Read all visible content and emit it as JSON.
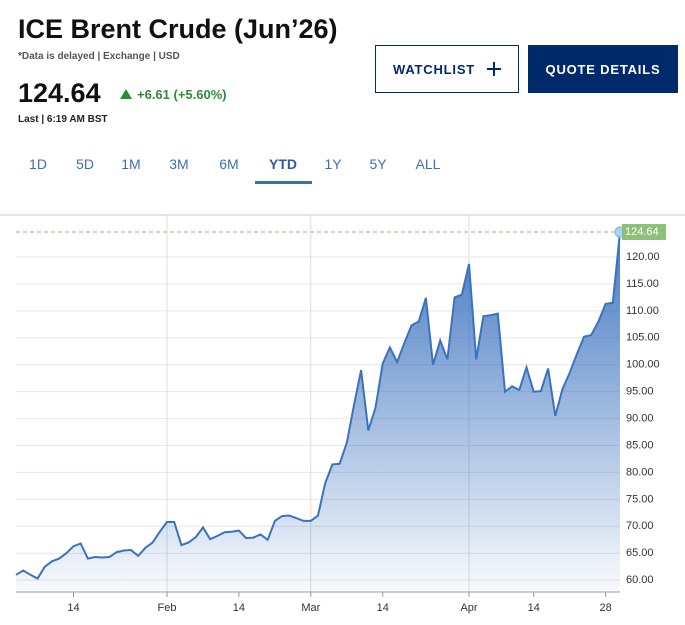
{
  "header": {
    "title": "ICE Brent Crude (Jun’26)",
    "note": "*Data is delayed | Exchange | USD",
    "price": "124.64",
    "change": "+6.61 (+5.60%)",
    "last": "Last | 6:19 AM BST"
  },
  "buttons": [
    "WATCHLIST",
    "QUOTE DETAILS"
  ],
  "tabs": [
    "1D",
    "5D",
    "1M",
    "3M",
    "6M",
    "YTD",
    "1Y",
    "5Y",
    "ALL"
  ],
  "selected_tab": 5,
  "chart_data": {
    "type": "area",
    "color": "#3b72bf",
    "last_color": "#8cc17a",
    "grid": true,
    "categories": [
      null,
      null,
      null,
      null,
      null,
      null,
      null,
      null,
      "14",
      null,
      null,
      null,
      null,
      null,
      null,
      null,
      null,
      null,
      null,
      null,
      null,
      "Feb",
      null,
      null,
      null,
      null,
      null,
      null,
      null,
      null,
      null,
      "14",
      null,
      null,
      null,
      null,
      null,
      null,
      null,
      null,
      null,
      "Mar",
      null,
      null,
      null,
      null,
      null,
      null,
      null,
      null,
      null,
      "14",
      null,
      null,
      null,
      null,
      null,
      null,
      null,
      null,
      null,
      null,
      null,
      "Apr",
      null,
      null,
      null,
      null,
      null,
      null,
      null,
      null,
      "14",
      null,
      null,
      null,
      null,
      null,
      null,
      null,
      null,
      null,
      "28",
      null,
      null
    ],
    "values": [
      61.0,
      61.8,
      61.0,
      60.3,
      62.5,
      63.5,
      64.0,
      65.0,
      66.3,
      66.8,
      64.0,
      64.3,
      64.2,
      64.3,
      65.2,
      65.5,
      65.6,
      64.5,
      66.0,
      67.0,
      69.0,
      70.8,
      70.8,
      66.5,
      67.0,
      68.0,
      69.8,
      67.6,
      68.2,
      68.9,
      69.0,
      69.2,
      67.8,
      67.9,
      68.5,
      67.5,
      71.0,
      71.9,
      72.0,
      71.5,
      71.0,
      71.0,
      72.0,
      78.0,
      81.5,
      81.6,
      85.5,
      92.5,
      99.0,
      87.8,
      92.0,
      100.2,
      103.2,
      100.5,
      104.0,
      107.3,
      108.0,
      112.4,
      100.0,
      104.5,
      101.0,
      112.5,
      113.0,
      118.7,
      101.0,
      109.0,
      109.2,
      109.5,
      95.0,
      96.0,
      95.3,
      99.5,
      95.0,
      95.1,
      99.3,
      90.5,
      95.5,
      98.5,
      102.0,
      105.2,
      105.5,
      108.0,
      111.3,
      111.5,
      124.64
    ],
    "ylim": [
      57.8,
      127.8
    ],
    "yticks": [
      {
        "value": 60,
        "label": "60.00"
      },
      {
        "value": 65,
        "label": "65.00"
      },
      {
        "value": 70,
        "label": "70.00"
      },
      {
        "value": 75,
        "label": "75.00"
      },
      {
        "value": 80,
        "label": "80.00"
      },
      {
        "value": 85,
        "label": "85.00"
      },
      {
        "value": 90,
        "label": "90.00"
      },
      {
        "value": 95,
        "label": "95.00"
      },
      {
        "value": 100,
        "label": "100.00"
      },
      {
        "value": 105,
        "label": "105.00"
      },
      {
        "value": 110,
        "label": "110.00"
      },
      {
        "value": 115,
        "label": "115.00"
      },
      {
        "value": 120,
        "label": "120.00"
      }
    ]
  }
}
